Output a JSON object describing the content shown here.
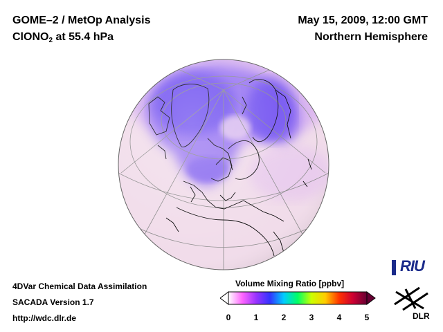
{
  "header": {
    "line1": "GOME–2 / MetOp Analysis",
    "species_prefix": "ClONO",
    "species_sub": "2",
    "species_suffix": " at 55.4 hPa",
    "date": "May 15, 2009, 12:00 GMT",
    "region": "Northern Hemisphere"
  },
  "footer": {
    "line1": "4DVar Chemical Data Assimilation",
    "line2": "SACADA Version 1.7",
    "line3": "http://wdc.dlr.de"
  },
  "colorbar": {
    "title": "Volume Mixing Ratio [ppbv]",
    "ticks": [
      "0",
      "1",
      "2",
      "3",
      "4",
      "5"
    ],
    "min": 0,
    "max": 5,
    "colors": [
      "#ffffff",
      "#ff66ff",
      "#9933ff",
      "#3333ff",
      "#00ccff",
      "#00ff66",
      "#ccff00",
      "#ffcc00",
      "#ff3300",
      "#cc0033",
      "#660033"
    ]
  },
  "logos": {
    "riu": "RIU",
    "dlr": "DLR"
  },
  "colors": {
    "globe_base": "#f1dcea",
    "polar_low": "#7a5cf0",
    "mid_low": "#c9a6ee",
    "coast": "#000000",
    "grid": "#8a8a8a"
  }
}
